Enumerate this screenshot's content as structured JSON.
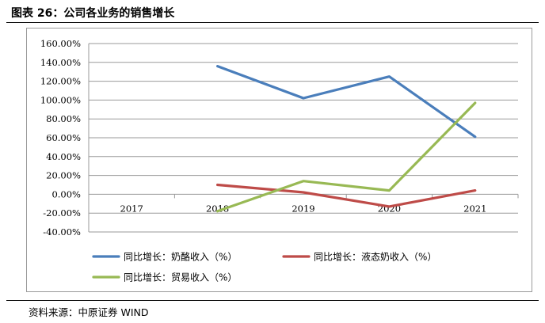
{
  "page": {
    "title": "图表 26：公司各业务的销售增长",
    "source": "资料来源：中原证券 WIND"
  },
  "chart_data": {
    "type": "line",
    "title": "",
    "xlabel": "",
    "ylabel": "",
    "categories": [
      "2017",
      "2018",
      "2019",
      "2020",
      "2021"
    ],
    "ylim": [
      -0.4,
      1.6
    ],
    "y_ticks": [
      1.6,
      1.4,
      1.2,
      1.0,
      0.8,
      0.6,
      0.4,
      0.2,
      0.0,
      -0.2,
      -0.4
    ],
    "y_tick_labels": [
      "160.00%",
      "140.00%",
      "120.00%",
      "100.00%",
      "80.00%",
      "60.00%",
      "40.00%",
      "20.00%",
      "0.00%",
      "-20.00%",
      "-40.00%"
    ],
    "grid": true,
    "legend_position": "bottom",
    "series": [
      {
        "name": "同比增长：奶酪收入（%）",
        "color": "#4a7ebb",
        "values": [
          null,
          1.36,
          1.02,
          1.25,
          0.61
        ]
      },
      {
        "name": "同比增长：液态奶收入（%）",
        "color": "#be4b48",
        "values": [
          null,
          0.1,
          0.02,
          -0.13,
          0.04
        ]
      },
      {
        "name": "同比增长：贸易收入（%）",
        "color": "#98b954",
        "values": [
          null,
          -0.18,
          0.14,
          0.04,
          0.97
        ]
      }
    ]
  }
}
